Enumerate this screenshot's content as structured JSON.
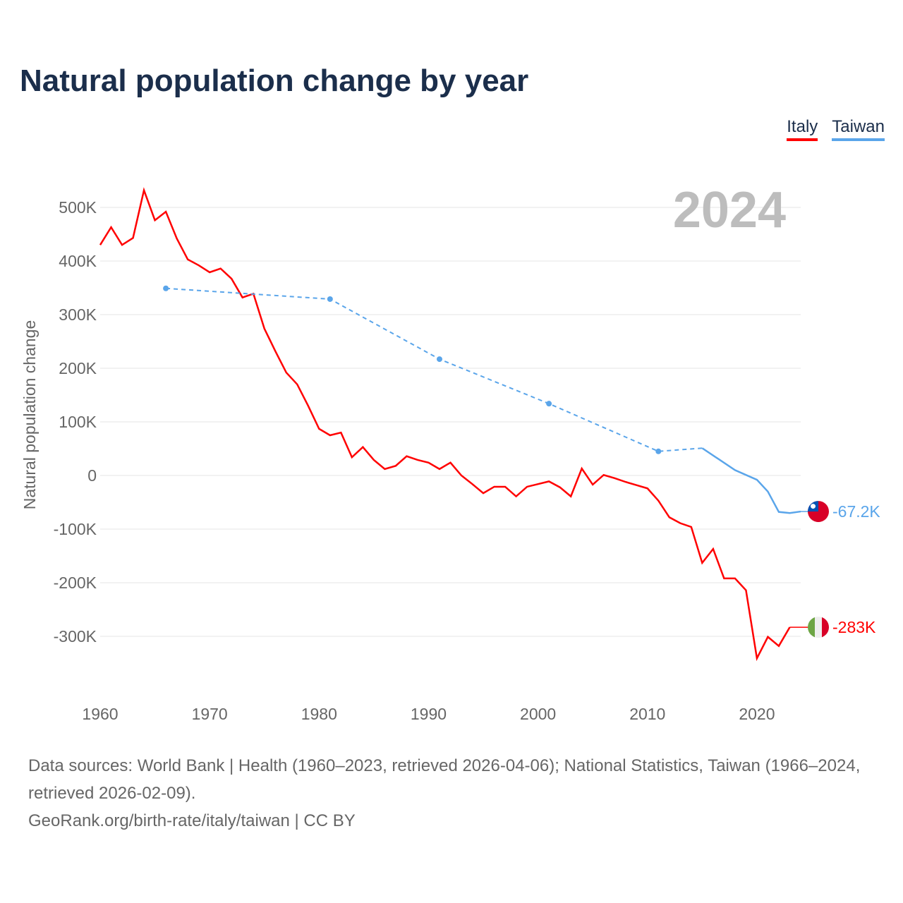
{
  "title": "Natural population change by year",
  "colors": {
    "italy": "#ff0000",
    "taiwan": "#5aa5ea"
  },
  "chart_data": {
    "type": "line",
    "title": "Natural population change by year",
    "ylabel": "Natural population change",
    "xlabel": "",
    "xlim": [
      1960,
      2024
    ],
    "ylim": [
      -400000,
      550000
    ],
    "x_ticks": [
      1960,
      1970,
      1980,
      1990,
      2000,
      2010,
      2020
    ],
    "x_tick_labels": [
      "1960",
      "1970",
      "1980",
      "1990",
      "2000",
      "2010",
      "2020"
    ],
    "y_ticks": [
      500000,
      400000,
      300000,
      200000,
      100000,
      0,
      -100000,
      -200000,
      -300000
    ],
    "y_tick_labels": [
      "500K",
      "400K",
      "300K",
      "200K",
      "100K",
      "0",
      "-100K",
      "-200K",
      "-300K"
    ],
    "year_label": "2024",
    "grid": true,
    "legend": "top-right",
    "series": [
      {
        "name": "Italy",
        "color": "#ff0000",
        "end_label": "-283K",
        "x": [
          1960,
          1961,
          1962,
          1963,
          1964,
          1965,
          1966,
          1967,
          1968,
          1969,
          1970,
          1971,
          1972,
          1973,
          1974,
          1975,
          1976,
          1977,
          1978,
          1979,
          1980,
          1981,
          1982,
          1983,
          1984,
          1985,
          1986,
          1987,
          1988,
          1989,
          1990,
          1991,
          1992,
          1993,
          1994,
          1995,
          1996,
          1997,
          1998,
          1999,
          2000,
          2001,
          2002,
          2003,
          2004,
          2005,
          2006,
          2007,
          2008,
          2009,
          2010,
          2011,
          2012,
          2013,
          2014,
          2015,
          2016,
          2017,
          2018,
          2019,
          2020,
          2021,
          2022,
          2023
        ],
        "values": [
          430000,
          463000,
          430000,
          443000,
          532000,
          476000,
          492000,
          442000,
          403000,
          392000,
          379000,
          386000,
          367000,
          332000,
          339000,
          274000,
          232000,
          192000,
          170000,
          130000,
          87000,
          75000,
          80000,
          34000,
          53000,
          29000,
          12000,
          18000,
          36000,
          29000,
          24000,
          12000,
          24000,
          0,
          -16000,
          -33000,
          -21000,
          -21000,
          -39000,
          -21000,
          -16000,
          -11000,
          -22000,
          -39000,
          13000,
          -17000,
          1000,
          -5000,
          -12000,
          -18000,
          -24000,
          -47000,
          -78000,
          -89000,
          -96000,
          -163000,
          -137000,
          -192000,
          -192000,
          -214000,
          -341000,
          -301000,
          -318000,
          -283000
        ]
      },
      {
        "name": "Taiwan",
        "color": "#5aa5ea",
        "end_label": "-67.2K",
        "x": [
          1966,
          1981,
          1991,
          2001,
          2011,
          2015,
          2018,
          2020,
          2021,
          2022,
          2023,
          2024
        ],
        "values": [
          349000,
          329000,
          217000,
          134000,
          45000,
          51000,
          10000,
          -8000,
          -30000,
          -68000,
          -70000,
          -67200
        ],
        "dashed_before": 2015
      }
    ]
  },
  "legend": [
    {
      "label": "Italy"
    },
    {
      "label": "Taiwan"
    }
  ],
  "footer": {
    "sources": "Data sources: World Bank | Health (1960–2023, retrieved 2026-04-06); National Statistics, Taiwan (1966–2024, retrieved 2026-02-09).",
    "credit": "GeoRank.org/birth-rate/italy/taiwan | CC BY"
  }
}
